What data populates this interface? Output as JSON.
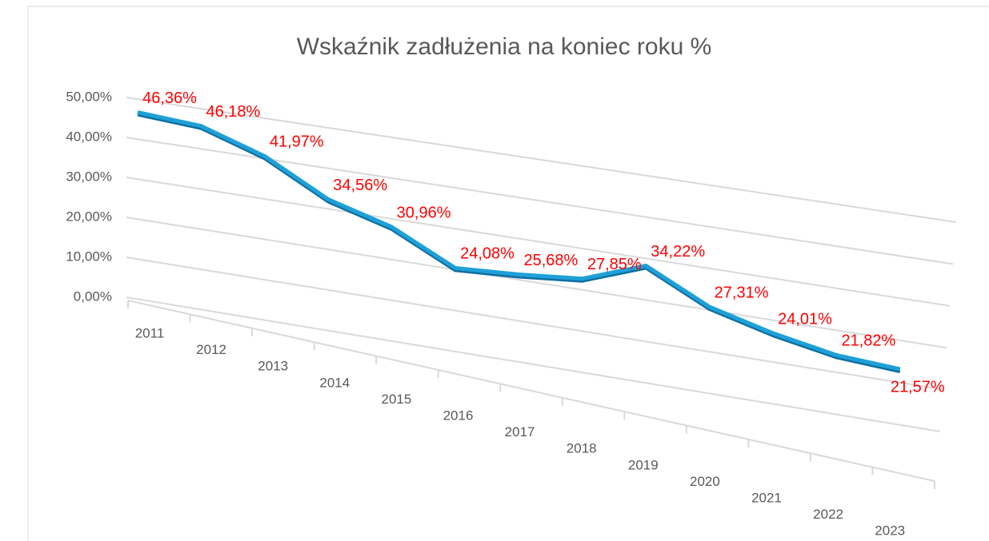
{
  "chart_data": {
    "type": "line",
    "title": "Wskaźnik zadłużenia na koniec roku %",
    "categories": [
      "2011",
      "2012",
      "2013",
      "2014",
      "2015",
      "2016",
      "2017",
      "2018",
      "2019",
      "2020",
      "2021",
      "2022",
      "2023"
    ],
    "series": [
      {
        "name": "Wskaźnik zadłużenia",
        "color": "#1fa0d8",
        "values": [
          46.36,
          46.18,
          41.97,
          34.56,
          30.96,
          24.08,
          25.68,
          27.85,
          34.22,
          27.31,
          24.01,
          21.82,
          21.57
        ],
        "value_labels": [
          "46,36%",
          "46,18%",
          "41,97%",
          "34,56%",
          "30,96%",
          "24,08%",
          "25,68%",
          "27,85%",
          "34,22%",
          "27,31%",
          "24,01%",
          "21,82%",
          "21,57%"
        ]
      }
    ],
    "ylim": [
      0,
      50
    ],
    "yticks": [
      {
        "value": 0,
        "label": "0,00%"
      },
      {
        "value": 10,
        "label": "10,00%"
      },
      {
        "value": 20,
        "label": "20,00%"
      },
      {
        "value": 30,
        "label": "30,00%"
      },
      {
        "value": 40,
        "label": "40,00%"
      },
      {
        "value": 50,
        "label": "50,00%"
      }
    ],
    "grid": true,
    "label_color": "#ff0000"
  }
}
